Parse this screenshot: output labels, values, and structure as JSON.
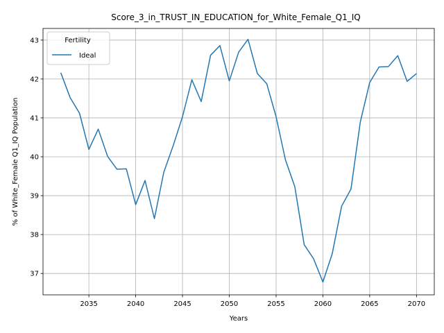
{
  "chart_data": {
    "type": "line",
    "title": "Score_3_in_TRUST_IN_EDUCATION_for_White_Female_Q1_IQ",
    "xlabel": "Years",
    "ylabel": "% of White_Female Q1_IQ Population",
    "xlim": [
      2030.1,
      2071.9
    ],
    "ylim": [
      36.45,
      43.3
    ],
    "xticks": [
      2035,
      2040,
      2045,
      2050,
      2055,
      2060,
      2065,
      2070
    ],
    "yticks": [
      37,
      38,
      39,
      40,
      41,
      42,
      43
    ],
    "grid": true,
    "legend": {
      "title": "Fertility",
      "position": "top-left"
    },
    "series": [
      {
        "name": "Ideal",
        "color": "#1f77b4",
        "x": [
          2032,
          2033,
          2034,
          2035,
          2036,
          2037,
          2038,
          2039,
          2040,
          2041,
          2042,
          2043,
          2044,
          2045,
          2046,
          2047,
          2048,
          2049,
          2050,
          2051,
          2052,
          2053,
          2054,
          2055,
          2056,
          2057,
          2058,
          2059,
          2060,
          2061,
          2062,
          2063,
          2064,
          2065,
          2066,
          2067,
          2068,
          2069,
          2070
        ],
        "y": [
          42.16,
          41.52,
          41.12,
          40.19,
          40.71,
          40.01,
          39.68,
          39.69,
          38.77,
          39.39,
          38.41,
          39.6,
          40.28,
          41.03,
          41.98,
          41.42,
          42.61,
          42.86,
          41.95,
          42.69,
          43.02,
          42.14,
          41.88,
          41.03,
          39.92,
          39.23,
          37.74,
          37.38,
          36.78,
          37.51,
          38.73,
          39.17,
          40.9,
          41.91,
          42.31,
          42.32,
          42.6,
          41.94,
          42.14
        ]
      }
    ]
  }
}
